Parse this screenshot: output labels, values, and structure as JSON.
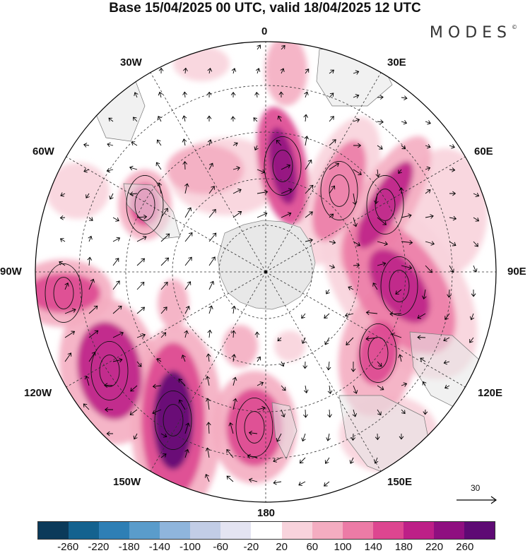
{
  "title": "Base 15/04/2025 00 UTC, valid 18/04/2025 12 UTC",
  "brand": "MODES",
  "brand_mark": "©",
  "longitude_labels": {
    "lon_0": "0",
    "lon_30e": "30E",
    "lon_60e": "60E",
    "lon_90e": "90E",
    "lon_120e": "120E",
    "lon_150e": "150E",
    "lon_180": "180",
    "lon_150w": "150W",
    "lon_120w": "120W",
    "lon_90w": "90W",
    "lon_60w": "60W",
    "lon_30w": "30W"
  },
  "wind_scale_label": "30",
  "colorbar": {
    "ticks": [
      "-260",
      "-220",
      "-180",
      "-140",
      "-100",
      "-60",
      "-20",
      "20",
      "60",
      "100",
      "140",
      "180",
      "220",
      "260"
    ],
    "colors": [
      "#0b3a5a",
      "#14628f",
      "#2e7fb5",
      "#5a9ccb",
      "#8fb5dc",
      "#c2cde6",
      "#e4e4f2",
      "#ffffff",
      "#f8d3dc",
      "#f4adc1",
      "#ec7ba6",
      "#dd4690",
      "#bd1f87",
      "#8f0f80",
      "#5e0a74"
    ]
  },
  "projection": "South polar stereographic",
  "map_features": {
    "circle_color": "#000000",
    "land_color": "#e8e8e8"
  }
}
